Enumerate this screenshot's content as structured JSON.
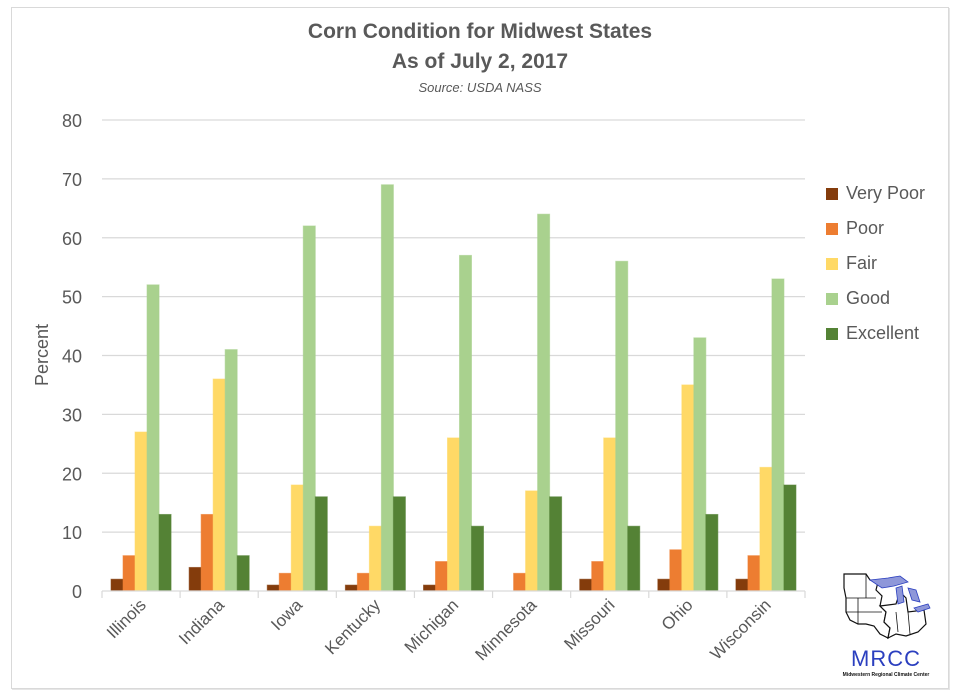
{
  "chart_data": {
    "type": "bar",
    "title": "Corn Condition for Midwest States",
    "title_line2": "As of July 2, 2017",
    "subtitle": "Source: USDA NASS",
    "xlabel": "",
    "ylabel": "Percent",
    "ylim": [
      0,
      80
    ],
    "yticks": [
      0,
      10,
      20,
      30,
      40,
      50,
      60,
      70,
      80
    ],
    "grid": true,
    "legend_position": "right",
    "categories": [
      "Illinois",
      "Indiana",
      "Iowa",
      "Kentucky",
      "Michigan",
      "Minnesota",
      "Missouri",
      "Ohio",
      "Wisconsin"
    ],
    "series": [
      {
        "name": "Very Poor",
        "color": "#843C0C",
        "values": [
          2,
          4,
          1,
          1,
          1,
          0,
          2,
          2,
          2
        ]
      },
      {
        "name": "Poor",
        "color": "#ED7D31",
        "values": [
          6,
          13,
          3,
          3,
          5,
          3,
          5,
          7,
          6
        ]
      },
      {
        "name": "Fair",
        "color": "#FFD966",
        "values": [
          27,
          36,
          18,
          11,
          26,
          17,
          26,
          35,
          21
        ]
      },
      {
        "name": "Good",
        "color": "#A9D18E",
        "values": [
          52,
          41,
          62,
          69,
          57,
          64,
          56,
          43,
          53
        ]
      },
      {
        "name": "Excellent",
        "color": "#548235",
        "values": [
          13,
          6,
          16,
          16,
          11,
          16,
          11,
          13,
          18
        ]
      }
    ]
  },
  "logo": {
    "name": "MRCC",
    "tagline": "Midwestern Regional Climate Center"
  }
}
